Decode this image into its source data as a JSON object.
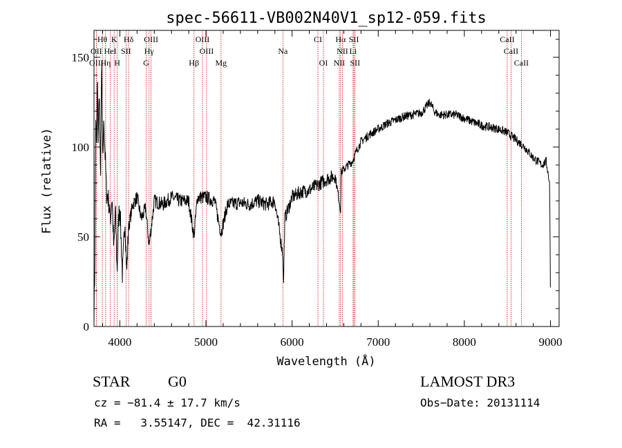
{
  "chart_data": {
    "type": "line",
    "title": "spec-56611-VB002N40V1_sp12-059.fits",
    "xlabel": "Wavelength (Å)",
    "ylabel": "Flux (relative)",
    "xlim": [
      3700,
      9100
    ],
    "ylim": [
      0,
      165
    ],
    "xticks": [
      4000,
      5000,
      6000,
      7000,
      8000,
      9000
    ],
    "yticks": [
      0,
      50,
      100,
      150
    ],
    "spectrum_anchors": [
      [
        3700,
        5
      ],
      [
        3710,
        35
      ],
      [
        3720,
        120
      ],
      [
        3730,
        95
      ],
      [
        3740,
        140
      ],
      [
        3750,
        100
      ],
      [
        3760,
        135
      ],
      [
        3775,
        80
      ],
      [
        3790,
        150
      ],
      [
        3800,
        90
      ],
      [
        3815,
        115
      ],
      [
        3830,
        95
      ],
      [
        3845,
        75
      ],
      [
        3870,
        70
      ],
      [
        3890,
        60
      ],
      [
        3910,
        72
      ],
      [
        3930,
        42
      ],
      [
        3950,
        65
      ],
      [
        3968,
        30
      ],
      [
        3985,
        60
      ],
      [
        4000,
        68
      ],
      [
        4030,
        28
      ],
      [
        4060,
        60
      ],
      [
        4080,
        30
      ],
      [
        4100,
        55
      ],
      [
        4150,
        68
      ],
      [
        4200,
        72
      ],
      [
        4250,
        60
      ],
      [
        4300,
        66
      ],
      [
        4340,
        45
      ],
      [
        4400,
        70
      ],
      [
        4500,
        68
      ],
      [
        4600,
        72
      ],
      [
        4700,
        70
      ],
      [
        4800,
        70
      ],
      [
        4861,
        50
      ],
      [
        4900,
        72
      ],
      [
        5000,
        72
      ],
      [
        5100,
        70
      ],
      [
        5175,
        52
      ],
      [
        5250,
        68
      ],
      [
        5400,
        69
      ],
      [
        5500,
        68
      ],
      [
        5600,
        70
      ],
      [
        5700,
        68
      ],
      [
        5800,
        70
      ],
      [
        5893,
        40
      ],
      [
        5900,
        22
      ],
      [
        5915,
        60
      ],
      [
        6000,
        72
      ],
      [
        6100,
        75
      ],
      [
        6200,
        76
      ],
      [
        6300,
        79
      ],
      [
        6400,
        82
      ],
      [
        6500,
        84
      ],
      [
        6563,
        65
      ],
      [
        6570,
        86
      ],
      [
        6650,
        90
      ],
      [
        6700,
        92
      ],
      [
        6750,
        98
      ],
      [
        6800,
        103
      ],
      [
        6900,
        107
      ],
      [
        7000,
        110
      ],
      [
        7100,
        113
      ],
      [
        7200,
        115
      ],
      [
        7300,
        117
      ],
      [
        7400,
        118
      ],
      [
        7500,
        119
      ],
      [
        7600,
        125
      ],
      [
        7650,
        120
      ],
      [
        7700,
        118
      ],
      [
        7800,
        118
      ],
      [
        7900,
        118
      ],
      [
        8000,
        116
      ],
      [
        8100,
        114
      ],
      [
        8200,
        112
      ],
      [
        8300,
        111
      ],
      [
        8400,
        110
      ],
      [
        8500,
        108
      ],
      [
        8600,
        104
      ],
      [
        8700,
        100
      ],
      [
        8800,
        94
      ],
      [
        8900,
        90
      ],
      [
        8950,
        92
      ],
      [
        8990,
        80
      ],
      [
        9000,
        18
      ]
    ],
    "spectral_lines": [
      {
        "name": "Hθ",
        "wl": 3797,
        "row": 0
      },
      {
        "name": "K",
        "wl": 3934,
        "row": 0
      },
      {
        "name": "Hδ",
        "wl": 4102,
        "row": 0
      },
      {
        "name": "OIII",
        "wl": 4363,
        "row": 0
      },
      {
        "name": "OIII",
        "wl": 4959,
        "row": 0
      },
      {
        "name": "CI",
        "wl": 6300,
        "row": 0
      },
      {
        "name": "Hα",
        "wl": 6563,
        "row": 0
      },
      {
        "name": "SII",
        "wl": 6717,
        "row": 0
      },
      {
        "name": "CaII",
        "wl": 8498,
        "row": 0
      },
      {
        "name": "OII",
        "wl": 3727,
        "row": 1
      },
      {
        "name": "HeI",
        "wl": 3889,
        "row": 1
      },
      {
        "name": "SII",
        "wl": 4072,
        "row": 1
      },
      {
        "name": "Hγ",
        "wl": 4340,
        "row": 1
      },
      {
        "name": "OIII",
        "wl": 5007,
        "row": 1
      },
      {
        "name": "Na",
        "wl": 5893,
        "row": 1
      },
      {
        "name": "NII",
        "wl": 6584,
        "row": 1
      },
      {
        "name": "Li",
        "wl": 6708,
        "row": 1
      },
      {
        "name": "CaII",
        "wl": 8542,
        "row": 1
      },
      {
        "name": "OIII",
        "wl": 3727,
        "row": 2
      },
      {
        "name": "Hη",
        "wl": 3835,
        "row": 2
      },
      {
        "name": "H",
        "wl": 3969,
        "row": 2
      },
      {
        "name": "G",
        "wl": 4305,
        "row": 2
      },
      {
        "name": "Hβ",
        "wl": 4861,
        "row": 2
      },
      {
        "name": "Mg",
        "wl": 5175,
        "row": 2
      },
      {
        "name": "OI",
        "wl": 6364,
        "row": 2
      },
      {
        "name": "NII",
        "wl": 6548,
        "row": 2
      },
      {
        "name": "SII",
        "wl": 6731,
        "row": 2
      },
      {
        "name": "CaII",
        "wl": 8662,
        "row": 2
      }
    ],
    "marker_color": "#cc0000",
    "line_color": "#000000"
  },
  "info": {
    "class": "STAR",
    "subclass": "G0",
    "survey": "LAMOST DR3",
    "cz": "cz = −81.4 ± 17.7 km/s",
    "obs_date": "Obs−Date: 20131114",
    "coords": "RA =   3.55147, DEC =  42.31116"
  }
}
